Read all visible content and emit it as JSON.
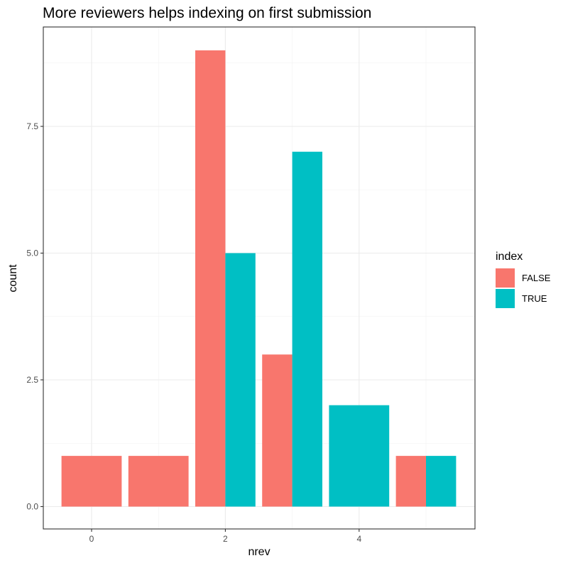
{
  "chart_data": {
    "type": "bar",
    "title": "More reviewers helps indexing on first submission",
    "xlabel": "nrev",
    "ylabel": "count",
    "x_ticks": [
      0,
      2,
      4
    ],
    "y_ticks": [
      0.0,
      2.5,
      5.0,
      7.5
    ],
    "y_tick_labels": [
      "0.0",
      "2.5",
      "5.0",
      "7.5"
    ],
    "xlim": [
      -0.5,
      5.5
    ],
    "ylim": [
      0,
      9.4
    ],
    "grid": true,
    "legend": {
      "title": "index",
      "position": "right",
      "entries": [
        {
          "name": "FALSE",
          "color": "#F8766D"
        },
        {
          "name": "TRUE",
          "color": "#00BFC4"
        }
      ]
    },
    "bars": [
      {
        "x": 0,
        "series": "FALSE",
        "value": 1,
        "width": "full"
      },
      {
        "x": 1,
        "series": "FALSE",
        "value": 1,
        "width": "full"
      },
      {
        "x": 2,
        "series": "FALSE",
        "value": 9,
        "width": "half-left"
      },
      {
        "x": 2,
        "series": "TRUE",
        "value": 5,
        "width": "half-right"
      },
      {
        "x": 3,
        "series": "FALSE",
        "value": 3,
        "width": "half-left"
      },
      {
        "x": 3,
        "series": "TRUE",
        "value": 7,
        "width": "half-right"
      },
      {
        "x": 4,
        "series": "TRUE",
        "value": 2,
        "width": "full"
      },
      {
        "x": 5,
        "series": "FALSE",
        "value": 1,
        "width": "half-left"
      },
      {
        "x": 5,
        "series": "TRUE",
        "value": 1,
        "width": "half-right"
      }
    ]
  }
}
